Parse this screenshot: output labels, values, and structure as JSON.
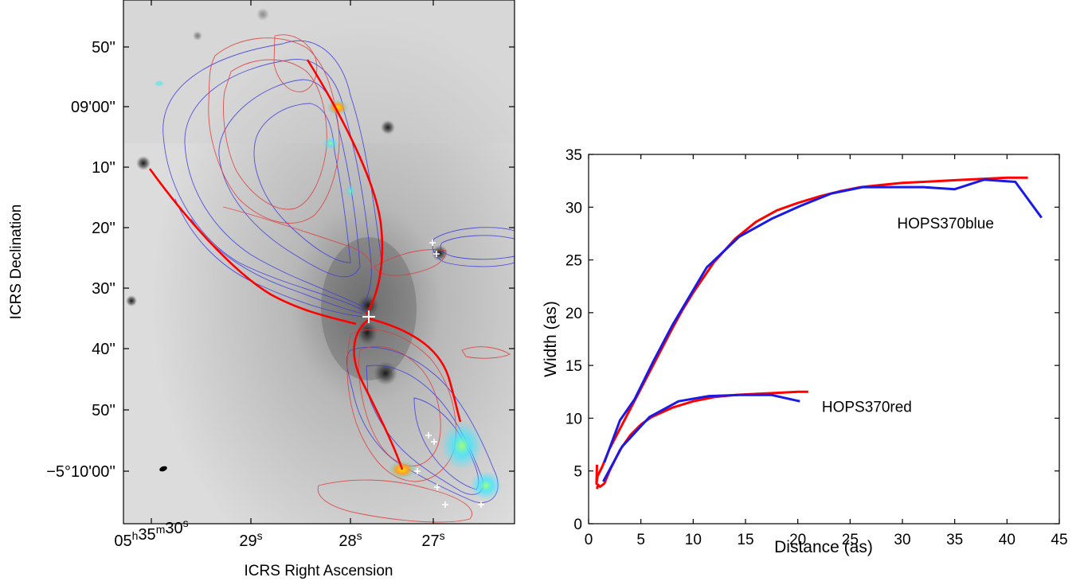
{
  "chart_data": [
    {
      "type": "image",
      "xlabel": "ICRS Right Ascension",
      "ylabel": "ICRS Declination",
      "x_ticks": [
        {
          "h": "05",
          "hs": "h",
          "m": "35",
          "ms": "m",
          "s": "30",
          "ss": "s"
        },
        {
          "s": "29",
          "ss": "s"
        },
        {
          "s": "28",
          "ss": "s"
        },
        {
          "s": "27",
          "ss": "s"
        }
      ],
      "y_ticks": [
        "50''",
        "09'00''",
        "10''",
        "20''",
        "30''",
        "40''",
        "50''",
        "−5°10'00''"
      ],
      "colors": {
        "blue_contours": "#3a3ae0",
        "red_contours": "#e03030",
        "fit_curve": "#ff0000",
        "markers": "#ffffff"
      }
    },
    {
      "type": "line",
      "xlabel": "Distance (as)",
      "ylabel": "Width (as)",
      "xlim": [
        0,
        45
      ],
      "ylim": [
        0,
        35
      ],
      "x_ticks": [
        0,
        5,
        10,
        15,
        20,
        25,
        30,
        35,
        40,
        45
      ],
      "y_ticks": [
        0,
        5,
        10,
        15,
        20,
        25,
        30,
        35
      ],
      "annotations": [
        {
          "text": "HOPS370blue",
          "x": 29.5,
          "y": 28.0
        },
        {
          "text": "HOPS370red",
          "x": 22.3,
          "y": 10.6
        }
      ],
      "series": [
        {
          "group": "blue",
          "kind": "fit",
          "color": "#ff0000",
          "x": [
            0.8,
            0.75,
            0.85,
            1.3,
            2,
            3,
            4,
            5,
            6,
            7,
            8,
            9,
            10,
            12,
            14,
            16,
            18,
            20,
            22,
            24,
            26,
            28,
            30,
            32,
            34,
            36,
            38,
            40,
            42
          ],
          "y": [
            5.6,
            3.8,
            4.5,
            5.4,
            7.1,
            9.0,
            10.9,
            12.8,
            14.7,
            16.6,
            18.5,
            20.3,
            21.9,
            24.8,
            27.0,
            28.6,
            29.7,
            30.4,
            31.0,
            31.5,
            31.9,
            32.1,
            32.3,
            32.4,
            32.5,
            32.6,
            32.7,
            32.8,
            32.8
          ]
        },
        {
          "group": "blue",
          "kind": "data",
          "color": "#1a1ae6",
          "x": [
            1.5,
            3.0,
            4.4,
            6.2,
            8.0,
            9.8,
            11.3,
            14.4,
            17.5,
            20.2,
            23.2,
            26.2,
            29.2,
            32.0,
            35.0,
            37.8,
            40.8,
            43.3
          ],
          "y": [
            5.8,
            9.8,
            11.8,
            15.4,
            18.8,
            21.8,
            24.3,
            27.2,
            28.9,
            30.1,
            31.3,
            31.9,
            31.9,
            31.9,
            31.7,
            32.6,
            32.4,
            29.0
          ]
        },
        {
          "group": "red",
          "kind": "fit",
          "color": "#ff0000",
          "x": [
            0.8,
            0.9,
            1.1,
            1.5,
            2,
            3,
            4,
            5,
            6,
            8,
            10,
            12,
            14,
            16,
            18,
            20,
            21
          ],
          "y": [
            3.3,
            3.7,
            3.5,
            3.8,
            5.0,
            7.0,
            8.4,
            9.4,
            10.1,
            11.0,
            11.6,
            12.0,
            12.2,
            12.3,
            12.4,
            12.5,
            12.5
          ]
        },
        {
          "group": "red",
          "kind": "data",
          "color": "#1a1ae6",
          "x": [
            1.4,
            3.2,
            5.8,
            8.6,
            11.5,
            14.5,
            17.5,
            20.2
          ],
          "y": [
            4.0,
            7.3,
            10.1,
            11.6,
            12.1,
            12.2,
            12.2,
            11.6
          ]
        }
      ]
    }
  ]
}
